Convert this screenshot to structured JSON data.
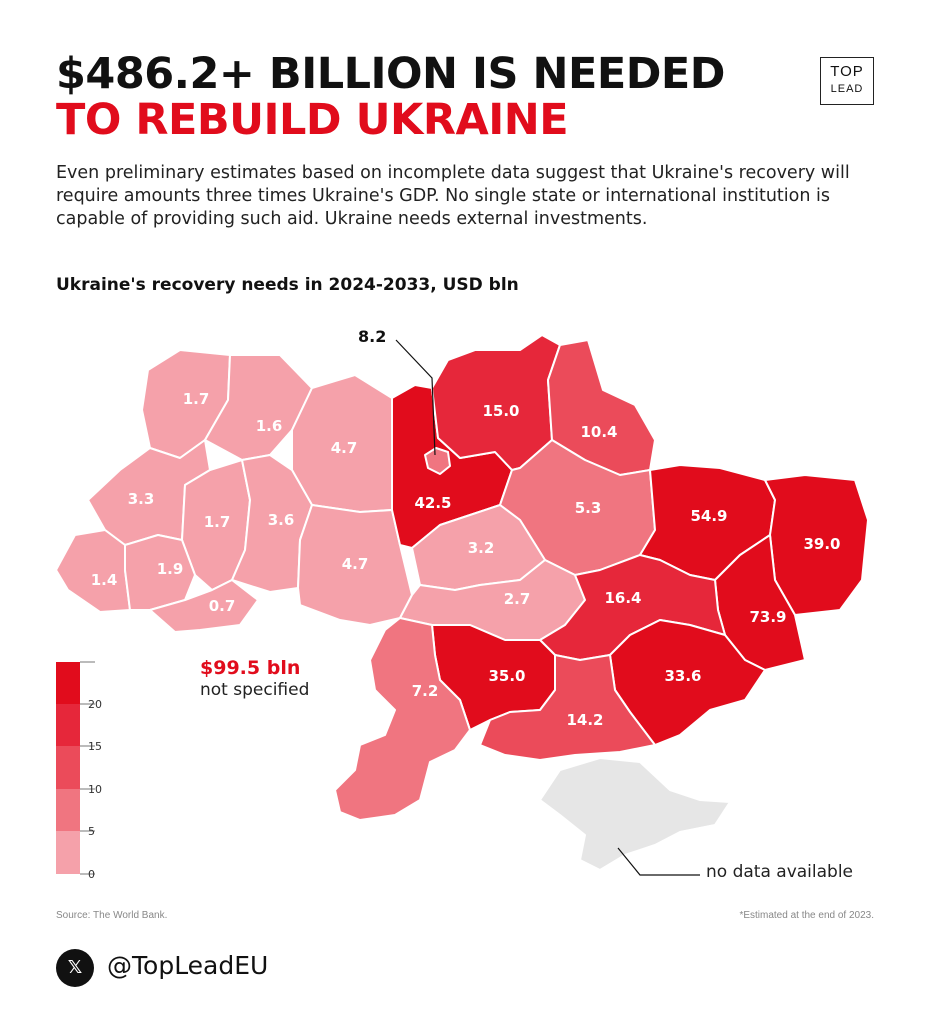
{
  "header": {
    "title_line1": "$486.2+ BILLION IS NEEDED",
    "title_line2": "TO REBUILD UKRAINE",
    "logo_line1": "TOP",
    "logo_line2": "LEAD"
  },
  "intro": "Even preliminary estimates based on incomplete data suggest that Ukraine's recovery will require amounts three times Ukraine's GDP. No single state or international institution is capable of providing such aid. Ukraine needs external investments.",
  "map_title": "Ukraine's recovery needs in 2024-2033, USD bln",
  "regions": [
    {
      "id": "volyn",
      "value": "1.7",
      "num": 1.7
    },
    {
      "id": "rivne",
      "value": "1.6",
      "num": 1.6
    },
    {
      "id": "zhytomyr",
      "value": "4.7",
      "num": 4.7
    },
    {
      "id": "kyiv-oblast",
      "value": "42.5",
      "num": 42.5
    },
    {
      "id": "kyiv-city",
      "value": "8.2",
      "num": 8.2
    },
    {
      "id": "chernihiv",
      "value": "15.0",
      "num": 15.0
    },
    {
      "id": "sumy",
      "value": "10.4",
      "num": 10.4
    },
    {
      "id": "kharkiv",
      "value": "54.9",
      "num": 54.9
    },
    {
      "id": "luhansk",
      "value": "39.0",
      "num": 39.0
    },
    {
      "id": "donetsk",
      "value": "73.9",
      "num": 73.9
    },
    {
      "id": "lviv",
      "value": "3.3",
      "num": 3.3
    },
    {
      "id": "ternopil",
      "value": "1.7",
      "num": 1.7
    },
    {
      "id": "khmelnytskyi",
      "value": "3.6",
      "num": 3.6
    },
    {
      "id": "zakarpattia",
      "value": "1.4",
      "num": 1.4
    },
    {
      "id": "ivano-frankivsk",
      "value": "1.9",
      "num": 1.9
    },
    {
      "id": "chernivtsi",
      "value": "0.7",
      "num": 0.7
    },
    {
      "id": "vinnytsia",
      "value": "4.7",
      "num": 4.7
    },
    {
      "id": "cherkasy",
      "value": "3.2",
      "num": 3.2
    },
    {
      "id": "poltava",
      "value": "5.3",
      "num": 5.3
    },
    {
      "id": "kirovohrad",
      "value": "2.7",
      "num": 2.7
    },
    {
      "id": "dnipropetrovsk",
      "value": "16.4",
      "num": 16.4
    },
    {
      "id": "zaporizhzhia",
      "value": "33.6",
      "num": 33.6
    },
    {
      "id": "mykolaiv",
      "value": "35.0",
      "num": 35.0
    },
    {
      "id": "kherson",
      "value": "14.2",
      "num": 14.2
    },
    {
      "id": "odesa",
      "value": "7.2",
      "num": 7.2
    },
    {
      "id": "crimea",
      "value": null,
      "num": null
    }
  ],
  "legend": {
    "ticks": [
      "20",
      "15",
      "10",
      "5",
      "0"
    ],
    "colors": [
      "#e10c1c",
      "#e6273a",
      "#eb4b5a",
      "#f07580",
      "#f5a1aa"
    ]
  },
  "not_specified": {
    "amount": "$99.5 bln",
    "label": "not specified"
  },
  "no_data_label": "no data available",
  "footer": {
    "source": "Source: The World Bank.",
    "note": "*Estimated at the end of 2023.",
    "x_icon": "x-logo-icon",
    "x_glyph": "𝕏",
    "handle": "@TopLeadEU"
  }
}
